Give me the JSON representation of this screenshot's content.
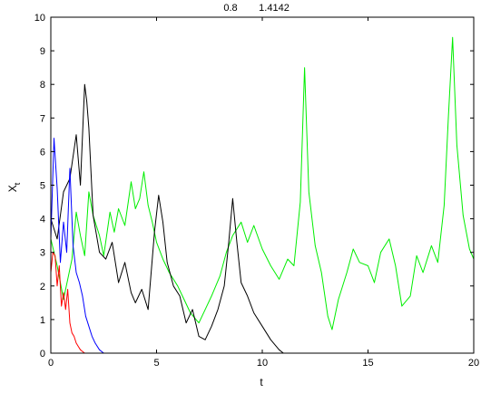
{
  "chart_data": {
    "type": "line",
    "title_parts": [
      "0.8",
      "1.4142"
    ],
    "xlabel": "t",
    "ylabel_main": "X",
    "ylabel_sub": "t",
    "xlim": [
      0,
      20
    ],
    "ylim": [
      0,
      10
    ],
    "xticks": [
      0,
      5,
      10,
      15,
      20
    ],
    "yticks": [
      0,
      1,
      2,
      3,
      4,
      5,
      6,
      7,
      8,
      9,
      10
    ],
    "grid": false,
    "series": [
      {
        "color": "#00ee00",
        "x": [
          0,
          0.3,
          0.6,
          1.0,
          1.2,
          1.4,
          1.6,
          1.8,
          2.0,
          2.3,
          2.5,
          2.8,
          3.0,
          3.2,
          3.5,
          3.8,
          4.0,
          4.2,
          4.4,
          4.6,
          4.8,
          5.0,
          5.3,
          5.6,
          6.0,
          6.3,
          6.6,
          7.0,
          7.3,
          7.6,
          8.0,
          8.3,
          8.6,
          9.0,
          9.3,
          9.6,
          10.0,
          10.4,
          10.8,
          11.2,
          11.5,
          11.8,
          12.0,
          12.2,
          12.5,
          12.8,
          13.1,
          13.3,
          13.6,
          14.0,
          14.3,
          14.6,
          15.0,
          15.3,
          15.6,
          16.0,
          16.3,
          16.6,
          17.0,
          17.3,
          17.6,
          18.0,
          18.3,
          18.6,
          18.8,
          19.0,
          19.2,
          19.5,
          19.8,
          20.0
        ],
        "y": [
          3.4,
          2.6,
          1.6,
          2.8,
          4.2,
          3.5,
          2.9,
          4.8,
          4.1,
          3.5,
          2.9,
          4.2,
          3.6,
          4.3,
          3.8,
          5.1,
          4.3,
          4.6,
          5.4,
          4.4,
          3.9,
          3.3,
          2.8,
          2.4,
          2.0,
          1.6,
          1.2,
          0.9,
          1.3,
          1.7,
          2.3,
          3.0,
          3.5,
          3.9,
          3.3,
          3.8,
          3.1,
          2.6,
          2.2,
          2.8,
          2.6,
          4.5,
          8.5,
          4.8,
          3.2,
          2.4,
          1.1,
          0.7,
          1.6,
          2.4,
          3.1,
          2.7,
          2.6,
          2.1,
          3.0,
          3.4,
          2.6,
          1.4,
          1.7,
          2.9,
          2.4,
          3.2,
          2.7,
          4.4,
          7.0,
          9.4,
          6.2,
          4.1,
          3.1,
          2.8
        ]
      },
      {
        "color": "#000000",
        "x": [
          0,
          0.3,
          0.6,
          0.9,
          1.2,
          1.4,
          1.6,
          1.7,
          1.8,
          2.0,
          2.3,
          2.6,
          2.9,
          3.2,
          3.5,
          3.8,
          4.0,
          4.3,
          4.6,
          4.9,
          5.1,
          5.3,
          5.5,
          5.8,
          6.1,
          6.4,
          6.7,
          7.0,
          7.3,
          7.6,
          7.9,
          8.2,
          8.4,
          8.6,
          8.8,
          9.0,
          9.3,
          9.6,
          10.0,
          10.4,
          10.8,
          11.0
        ],
        "y": [
          4.0,
          3.4,
          4.8,
          5.2,
          6.5,
          5.0,
          8.0,
          7.5,
          6.7,
          4.1,
          3.0,
          2.8,
          3.3,
          2.1,
          2.7,
          1.8,
          1.5,
          1.9,
          1.3,
          3.6,
          4.7,
          3.9,
          2.7,
          2.0,
          1.7,
          0.9,
          1.3,
          0.5,
          0.4,
          0.8,
          1.3,
          2.0,
          3.2,
          4.6,
          3.3,
          2.1,
          1.7,
          1.2,
          0.8,
          0.4,
          0.1,
          0.0
        ]
      },
      {
        "color": "#0000ff",
        "x": [
          0,
          0.15,
          0.3,
          0.45,
          0.6,
          0.75,
          0.9,
          1.05,
          1.2,
          1.35,
          1.5,
          1.65,
          1.8,
          1.95,
          2.1,
          2.3,
          2.5
        ],
        "y": [
          3.4,
          6.4,
          4.9,
          2.7,
          3.9,
          3.0,
          5.5,
          3.2,
          2.4,
          2.1,
          1.7,
          1.1,
          0.8,
          0.5,
          0.3,
          0.1,
          0.0
        ]
      },
      {
        "color": "#ff0000",
        "x": [
          0,
          0.1,
          0.2,
          0.3,
          0.4,
          0.5,
          0.6,
          0.7,
          0.8,
          0.9,
          1.0,
          1.1,
          1.2,
          1.3,
          1.4,
          1.5,
          1.6
        ],
        "y": [
          2.4,
          3.0,
          2.9,
          2.0,
          2.6,
          1.4,
          1.8,
          1.3,
          1.9,
          0.9,
          0.6,
          0.5,
          0.3,
          0.2,
          0.1,
          0.05,
          0.0
        ]
      }
    ]
  }
}
